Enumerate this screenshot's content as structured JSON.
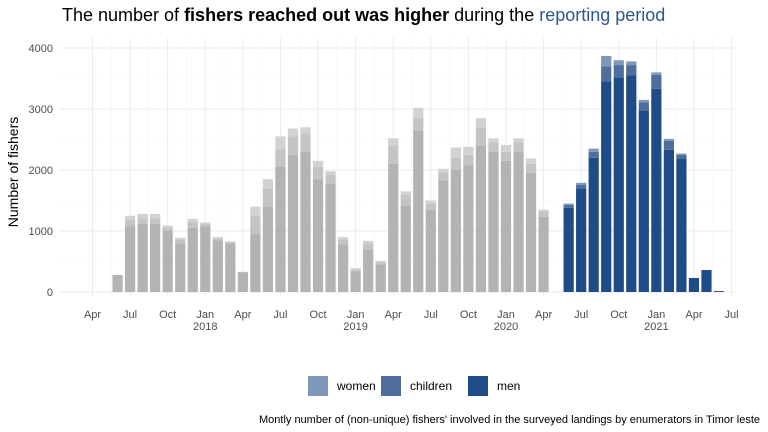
{
  "title": {
    "part1": "The number of ",
    "bold": "fishers reached out was higher",
    "part2": " during the ",
    "highlight": "reporting period",
    "highlight_color": "#2b5797"
  },
  "caption": "Montly number of (non-unique) fishers' involved in the surveyed landings by enumerators in Timor leste",
  "legend": {
    "items": [
      {
        "label": "women",
        "color": "#7f97b8"
      },
      {
        "label": "children",
        "color": "#4e6e9c"
      },
      {
        "label": "men",
        "color": "#1f4b86"
      }
    ]
  },
  "colors": {
    "highlight": {
      "men": "#1f4b86",
      "children": "#4e6e9c",
      "women": "#7f97b8"
    },
    "muted": {
      "men": "#b3b3b3",
      "children": "#c4c4c4",
      "women": "#d2d2d2"
    },
    "grid_major": "#ebebeb",
    "grid_minor": "#f5f5f5"
  },
  "chart_data": {
    "type": "bar",
    "stacked": true,
    "ylabel": "Number of fishers",
    "ylim": [
      0,
      4000
    ],
    "yticks": [
      0,
      1000,
      2000,
      3000,
      4000
    ],
    "xticks": [
      {
        "label": "Apr",
        "year": "",
        "month": "2017-04"
      },
      {
        "label": "Jul",
        "year": "",
        "month": "2017-07"
      },
      {
        "label": "Oct",
        "year": "",
        "month": "2017-10"
      },
      {
        "label": "Jan",
        "year": "2018",
        "month": "2018-01"
      },
      {
        "label": "Apr",
        "year": "",
        "month": "2018-04"
      },
      {
        "label": "Jul",
        "year": "",
        "month": "2018-07"
      },
      {
        "label": "Oct",
        "year": "",
        "month": "2018-10"
      },
      {
        "label": "Jan",
        "year": "2019",
        "month": "2019-01"
      },
      {
        "label": "Apr",
        "year": "",
        "month": "2019-04"
      },
      {
        "label": "Jul",
        "year": "",
        "month": "2019-07"
      },
      {
        "label": "Oct",
        "year": "",
        "month": "2019-10"
      },
      {
        "label": "Jan",
        "year": "2020",
        "month": "2020-01"
      },
      {
        "label": "Apr",
        "year": "",
        "month": "2020-04"
      },
      {
        "label": "Jul",
        "year": "",
        "month": "2020-07"
      },
      {
        "label": "Oct",
        "year": "",
        "month": "2020-10"
      },
      {
        "label": "Jan",
        "year": "2021",
        "month": "2021-01"
      },
      {
        "label": "Apr",
        "year": "",
        "month": "2021-04"
      },
      {
        "label": "Jul",
        "year": "",
        "month": "2021-07"
      }
    ],
    "highlight_from": "2020-06",
    "bars": [
      {
        "month": "2017-06",
        "men": 280,
        "children": 0,
        "women": 0
      },
      {
        "month": "2017-07",
        "men": 1080,
        "children": 100,
        "women": 70
      },
      {
        "month": "2017-08",
        "men": 1120,
        "children": 90,
        "women": 70
      },
      {
        "month": "2017-09",
        "men": 1120,
        "children": 90,
        "women": 70
      },
      {
        "month": "2017-10",
        "men": 1000,
        "children": 60,
        "women": 30
      },
      {
        "month": "2017-11",
        "men": 800,
        "children": 60,
        "women": 30
      },
      {
        "month": "2017-12",
        "men": 1050,
        "children": 100,
        "women": 50
      },
      {
        "month": "2018-01",
        "men": 1080,
        "children": 40,
        "women": 20
      },
      {
        "month": "2018-02",
        "men": 850,
        "children": 30,
        "women": 20
      },
      {
        "month": "2018-03",
        "men": 800,
        "children": 20,
        "women": 10
      },
      {
        "month": "2018-04",
        "men": 320,
        "children": 10,
        "women": 0
      },
      {
        "month": "2018-05",
        "men": 950,
        "children": 300,
        "women": 150
      },
      {
        "month": "2018-06",
        "men": 1400,
        "children": 300,
        "women": 150
      },
      {
        "month": "2018-07",
        "men": 2050,
        "children": 300,
        "women": 200
      },
      {
        "month": "2018-08",
        "men": 2250,
        "children": 300,
        "women": 130
      },
      {
        "month": "2018-09",
        "men": 2300,
        "children": 300,
        "women": 100
      },
      {
        "month": "2018-10",
        "men": 1850,
        "children": 200,
        "women": 100
      },
      {
        "month": "2018-11",
        "men": 1780,
        "children": 150,
        "women": 50
      },
      {
        "month": "2018-12",
        "men": 780,
        "children": 80,
        "women": 40
      },
      {
        "month": "2019-01",
        "men": 340,
        "children": 30,
        "women": 20
      },
      {
        "month": "2019-02",
        "men": 700,
        "children": 100,
        "women": 40
      },
      {
        "month": "2019-03",
        "men": 450,
        "children": 40,
        "women": 20
      },
      {
        "month": "2019-04",
        "men": 2100,
        "children": 300,
        "women": 120
      },
      {
        "month": "2019-05",
        "men": 1420,
        "children": 170,
        "women": 60
      },
      {
        "month": "2019-06",
        "men": 2650,
        "children": 200,
        "women": 170
      },
      {
        "month": "2019-07",
        "men": 1350,
        "children": 100,
        "women": 50
      },
      {
        "month": "2019-08",
        "men": 1830,
        "children": 130,
        "women": 60
      },
      {
        "month": "2019-09",
        "men": 2000,
        "children": 200,
        "women": 170
      },
      {
        "month": "2019-10",
        "men": 2080,
        "children": 170,
        "women": 130
      },
      {
        "month": "2019-11",
        "men": 2400,
        "children": 300,
        "women": 150
      },
      {
        "month": "2019-12",
        "men": 2300,
        "children": 150,
        "women": 70
      },
      {
        "month": "2020-01",
        "men": 2150,
        "children": 150,
        "women": 110
      },
      {
        "month": "2020-02",
        "men": 2300,
        "children": 150,
        "women": 70
      },
      {
        "month": "2020-03",
        "men": 1950,
        "children": 150,
        "women": 90
      },
      {
        "month": "2020-04",
        "men": 1230,
        "children": 90,
        "women": 30
      },
      {
        "month": "2020-06",
        "men": 1380,
        "children": 50,
        "women": 20
      },
      {
        "month": "2020-07",
        "men": 1700,
        "children": 60,
        "women": 30
      },
      {
        "month": "2020-08",
        "men": 2200,
        "children": 100,
        "women": 50
      },
      {
        "month": "2020-09",
        "men": 3450,
        "children": 250,
        "women": 170
      },
      {
        "month": "2020-10",
        "men": 3520,
        "children": 200,
        "women": 80
      },
      {
        "month": "2020-11",
        "men": 3550,
        "children": 170,
        "women": 60
      },
      {
        "month": "2020-12",
        "men": 2980,
        "children": 130,
        "women": 40
      },
      {
        "month": "2021-01",
        "men": 3330,
        "children": 230,
        "women": 40
      },
      {
        "month": "2021-02",
        "men": 2330,
        "children": 150,
        "women": 30
      },
      {
        "month": "2021-03",
        "men": 2180,
        "children": 70,
        "women": 20
      },
      {
        "month": "2021-04",
        "men": 230,
        "children": 0,
        "women": 0
      },
      {
        "month": "2021-05",
        "men": 360,
        "children": 0,
        "women": 0
      },
      {
        "month": "2021-06",
        "men": 15,
        "children": 0,
        "women": 0
      }
    ]
  }
}
